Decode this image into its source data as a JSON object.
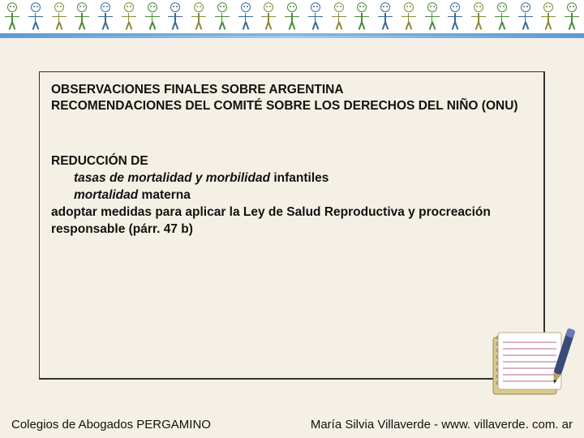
{
  "colors": {
    "background": "#f5f0e6",
    "box_border": "#333333",
    "text": "#111111",
    "border_gradient_a": "#5a9bd5",
    "border_gradient_b": "#a9c8e8"
  },
  "stick_figures": {
    "count": 25,
    "color_cycle": [
      "green",
      "blue",
      "olive"
    ]
  },
  "title": {
    "line1": "OBSERVACIONES FINALES SOBRE ARGENTINA",
    "line2": "RECOMENDACIONES DEL COMITÉ SOBRE LOS DERECHOS DEL NIÑO (ONU)"
  },
  "section": {
    "heading": "REDUCCIÓN DE",
    "item1_italic": "tasas de mortalidad y morbilidad",
    "item1_plain": " infantiles",
    "item2_italic": "mortalidad",
    "item2_plain": " materna",
    "body": "adoptar medidas para aplicar la Ley de Salud Reproductiva y procreación responsable (párr. 47 b)"
  },
  "footer": {
    "left": "Colegios de Abogados PERGAMINO",
    "right": "María Silvia Villaverde  -  www. villaverde. com. ar"
  },
  "notebook": {
    "page_color": "#ffffff",
    "line_color": "#b56a8a",
    "cover_color": "#d9c98a",
    "binding_color": "#888888",
    "pen_body": "#3a4a7a",
    "pen_tip": "#222222"
  }
}
